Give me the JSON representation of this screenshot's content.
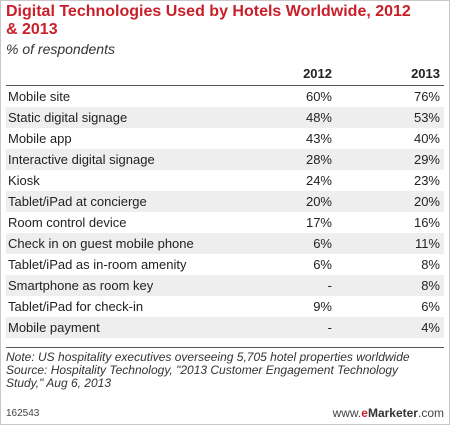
{
  "title": "Digital Technologies Used by Hotels Worldwide, 2012 & 2013",
  "subtitle": "% of respondents",
  "chart_data": {
    "type": "table",
    "title": "Digital Technologies Used by Hotels Worldwide, 2012 & 2013",
    "subtitle": "% of respondents",
    "columns": [
      "2012",
      "2013"
    ],
    "rows": [
      {
        "label": "Mobile site",
        "y2012": "60%",
        "y2013": "76%"
      },
      {
        "label": "Static digital signage",
        "y2012": "48%",
        "y2013": "53%"
      },
      {
        "label": "Mobile app",
        "y2012": "43%",
        "y2013": "40%"
      },
      {
        "label": "Interactive digital signage",
        "y2012": "28%",
        "y2013": "29%"
      },
      {
        "label": "Kiosk",
        "y2012": "24%",
        "y2013": "23%"
      },
      {
        "label": "Tablet/iPad at concierge",
        "y2012": "20%",
        "y2013": "20%"
      },
      {
        "label": "Room control device",
        "y2012": "17%",
        "y2013": "16%"
      },
      {
        "label": "Check in on guest mobile phone",
        "y2012": "6%",
        "y2013": "11%"
      },
      {
        "label": "Tablet/iPad as in-room amenity",
        "y2012": "6%",
        "y2013": "8%"
      },
      {
        "label": "Smartphone as room key",
        "y2012": "-",
        "y2013": "8%"
      },
      {
        "label": "Tablet/iPad for check-in",
        "y2012": "9%",
        "y2013": "6%"
      },
      {
        "label": "Mobile payment",
        "y2012": "-",
        "y2013": "4%"
      }
    ]
  },
  "note": "Note: US hospitality executives overseeing 5,705 hotel properties worldwide",
  "source": "Source: Hospitality Technology, \"2013 Customer Engagement Technology Study,\" Aug 6, 2013",
  "chart_id": "162543",
  "brand": {
    "prefix": "www.",
    "e": "e",
    "rest": "Marketer",
    "suffix": ".com"
  },
  "colors": {
    "title": "#c8202a",
    "row_alt": "#eeeeee"
  }
}
